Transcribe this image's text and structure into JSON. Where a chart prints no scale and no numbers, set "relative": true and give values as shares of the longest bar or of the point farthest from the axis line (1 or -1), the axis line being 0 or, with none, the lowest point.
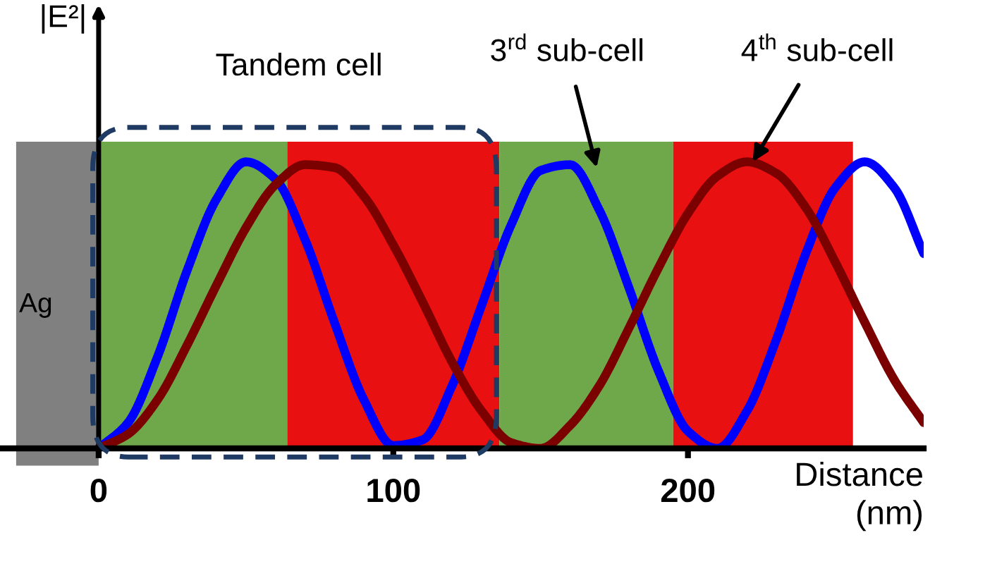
{
  "chart_data": {
    "type": "line",
    "relative": true,
    "ylabel": "|E²|",
    "xlabel": "Distance\n(nm)",
    "x": [
      0,
      10,
      20,
      30,
      40,
      50,
      60,
      70,
      80,
      90,
      100,
      110,
      120,
      130,
      140,
      150,
      160,
      170,
      180,
      190,
      200,
      210,
      220,
      230,
      240,
      250,
      260,
      270,
      280
    ],
    "xlim": [
      -33,
      280
    ],
    "xticks": [
      0,
      100,
      200
    ],
    "grid": false,
    "legend": false,
    "marker": "none",
    "line_style": "solid",
    "series": [
      {
        "color": "#0000ff",
        "values": [
          0,
          0.09,
          0.32,
          0.62,
          0.87,
          1.0,
          0.94,
          0.73,
          0.44,
          0.17,
          0.01,
          0.03,
          0.22,
          0.5,
          0.78,
          0.97,
          0.99,
          0.83,
          0.56,
          0.27,
          0.06,
          0.0,
          0.13,
          0.38,
          0.68,
          0.91,
          1.0,
          0.91,
          0.68
        ]
      },
      {
        "color": "#7b0000",
        "values": [
          0,
          0.05,
          0.17,
          0.36,
          0.57,
          0.77,
          0.92,
          0.99,
          0.98,
          0.88,
          0.71,
          0.51,
          0.3,
          0.13,
          0.02,
          0.0,
          0.08,
          0.22,
          0.42,
          0.63,
          0.82,
          0.95,
          1.0,
          0.96,
          0.84,
          0.65,
          0.44,
          0.24,
          0.09
        ]
      }
    ],
    "bands": [
      {
        "axis": "x",
        "from": -28,
        "to": 0,
        "label": "Ag",
        "color": "#808080"
      },
      {
        "axis": "x",
        "from": 0,
        "to": 64,
        "color": "#6fa84a"
      },
      {
        "axis": "x",
        "from": 64,
        "to": 136,
        "color": "#e81010"
      },
      {
        "axis": "x",
        "from": 136,
        "to": 195,
        "color": "#6fa84a"
      },
      {
        "axis": "x",
        "from": 195,
        "to": 256,
        "color": "#e81010"
      }
    ],
    "annotations": [
      "Tandem cell",
      "3$^{rd}$ sub-cell",
      "4$^{th}$ sub-cell"
    ]
  }
}
